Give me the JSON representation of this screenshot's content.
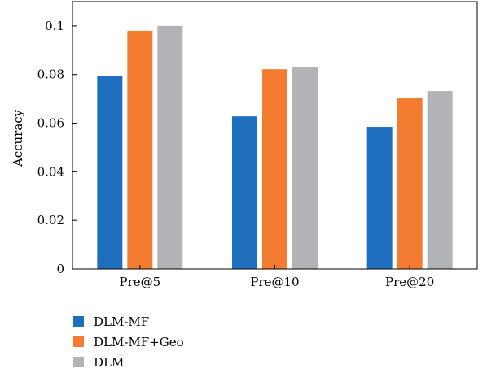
{
  "chart_data": {
    "type": "bar",
    "title": "",
    "xlabel": "",
    "ylabel": "Accuracy",
    "categories": [
      "Pre@5",
      "Pre@10",
      "Pre@20"
    ],
    "series": [
      {
        "name": "DLM-MF",
        "values": [
          0.0795,
          0.0628,
          0.0585
        ],
        "color": "#1f6fbf"
      },
      {
        "name": "DLM-MF+Geo",
        "values": [
          0.098,
          0.0822,
          0.0702
        ],
        "color": "#f47c30"
      },
      {
        "name": "DLM",
        "values": [
          0.1,
          0.0832,
          0.0732
        ],
        "color": "#b2b3b7"
      }
    ],
    "ylim": [
      0,
      0.11
    ],
    "yticks": [
      "0",
      "0.02",
      "0.04",
      "0.06",
      "0.08",
      "0.1"
    ],
    "ytick_values": [
      0,
      0.02,
      0.04,
      0.06,
      0.08,
      0.1
    ],
    "grid": false,
    "legend_position": "bottom-left"
  }
}
